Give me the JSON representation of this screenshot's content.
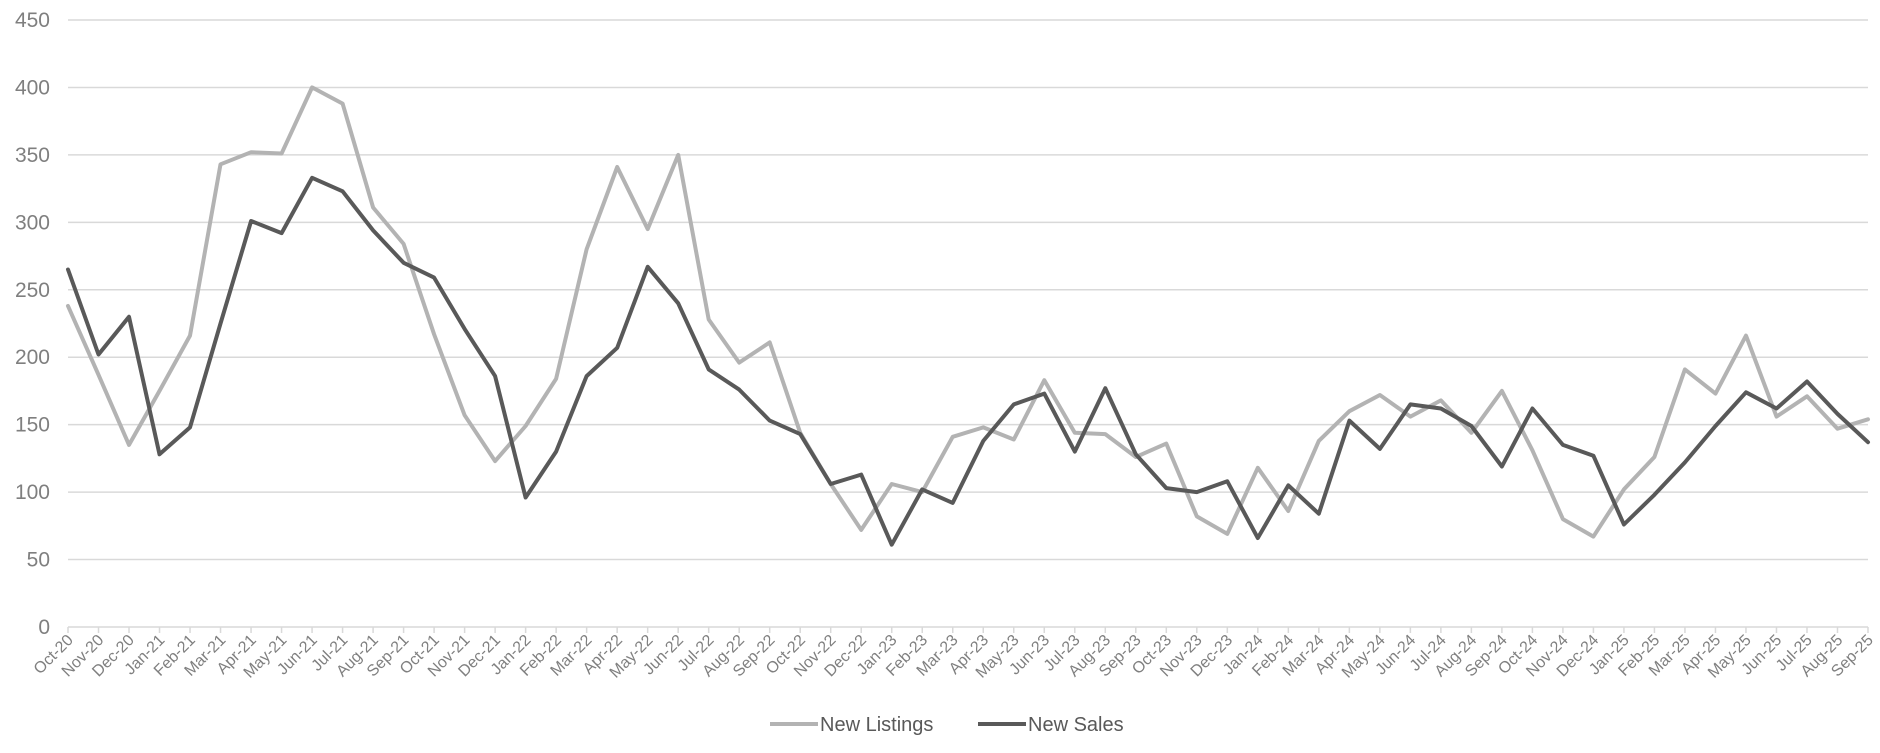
{
  "chart_data": {
    "type": "line",
    "title": "",
    "xlabel": "",
    "ylabel": "",
    "ylim": [
      0,
      450
    ],
    "yticks": [
      0,
      50,
      100,
      150,
      200,
      250,
      300,
      350,
      400,
      450
    ],
    "grid": true,
    "legend_position": "bottom-center",
    "categories": [
      "Oct-20",
      "Nov-20",
      "Dec-20",
      "Jan-21",
      "Feb-21",
      "Mar-21",
      "Apr-21",
      "May-21",
      "Jun-21",
      "Jul-21",
      "Aug-21",
      "Sep-21",
      "Oct-21",
      "Nov-21",
      "Dec-21",
      "Jan-22",
      "Feb-22",
      "Mar-22",
      "Apr-22",
      "May-22",
      "Jun-22",
      "Jul-22",
      "Aug-22",
      "Sep-22",
      "Oct-22",
      "Nov-22",
      "Dec-22",
      "Jan-23",
      "Feb-23",
      "Mar-23",
      "Apr-23",
      "May-23",
      "Jun-23",
      "Jul-23",
      "Aug-23",
      "Sep-23",
      "Oct-23",
      "Nov-23",
      "Dec-23",
      "Jan-24",
      "Feb-24",
      "Mar-24",
      "Apr-24",
      "May-24",
      "Jun-24",
      "Jul-24",
      "Aug-24",
      "Sep-24",
      "Oct-24",
      "Nov-24",
      "Dec-24",
      "Jan-25",
      "Feb-25",
      "Mar-25",
      "Apr-25",
      "May-25",
      "Jun-25",
      "Jul-25",
      "Aug-25",
      "Sep-25"
    ],
    "series": [
      {
        "name": "New Listings",
        "color": "#b3b3b3",
        "values": [
          238,
          187,
          135,
          175,
          216,
          343,
          352,
          351,
          400,
          388,
          311,
          284,
          217,
          157,
          123,
          149,
          184,
          280,
          341,
          295,
          350,
          228,
          196,
          211,
          144,
          106,
          72,
          106,
          100,
          141,
          148,
          139,
          183,
          144,
          143,
          126,
          136,
          82,
          69,
          118,
          86,
          138,
          160,
          172,
          156,
          168,
          144,
          175,
          131,
          80,
          67,
          102,
          126,
          191,
          173,
          216,
          156,
          171,
          147,
          154
        ]
      },
      {
        "name": "New Sales",
        "color": "#595959",
        "values": [
          265,
          202,
          230,
          128,
          148,
          225,
          301,
          292,
          333,
          323,
          294,
          270,
          259,
          221,
          186,
          96,
          130,
          186,
          207,
          267,
          240,
          191,
          176,
          153,
          143,
          106,
          113,
          61,
          102,
          92,
          138,
          165,
          173,
          130,
          177,
          128,
          103,
          100,
          108,
          66,
          105,
          84,
          153,
          132,
          165,
          162,
          149,
          119,
          162,
          135,
          127,
          76,
          98,
          122,
          149,
          174,
          162,
          182,
          158,
          137
        ]
      }
    ]
  }
}
